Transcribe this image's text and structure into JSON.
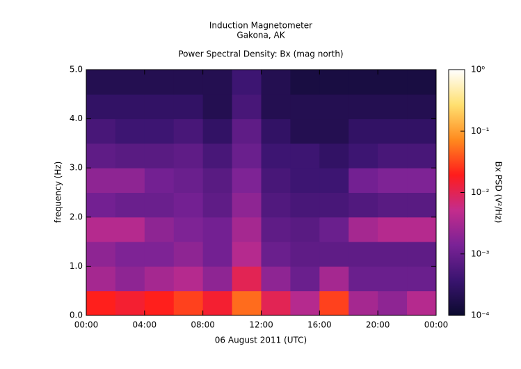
{
  "chart_data": {
    "type": "heatmap",
    "title": "Induction Magnetometer",
    "subtitle": "Gakona, AK",
    "plot_title": "Power Spectral Density: Bx (mag north)",
    "y_label": "frequency (Hz)",
    "x_label": "06 August 2011 (UTC)",
    "colorbar_label": "Bx PSD (V²/Hz)",
    "xlim": [
      0,
      24
    ],
    "xticks": [
      {
        "value": 0,
        "label": "00:00"
      },
      {
        "value": 4,
        "label": "04:00"
      },
      {
        "value": 8,
        "label": "08:00"
      },
      {
        "value": 12,
        "label": "12:00"
      },
      {
        "value": 16,
        "label": "16:00"
      },
      {
        "value": 20,
        "label": "20:00"
      },
      {
        "value": 24,
        "label": "00:00"
      }
    ],
    "ylim": [
      0,
      5
    ],
    "yticks": [
      {
        "value": 0,
        "label": "0.0"
      },
      {
        "value": 1,
        "label": "1.0"
      },
      {
        "value": 2,
        "label": "2.0"
      },
      {
        "value": 3,
        "label": "3.0"
      },
      {
        "value": 4,
        "label": "4.0"
      },
      {
        "value": 5,
        "label": "5.0"
      }
    ],
    "clim": [
      0.0001,
      1
    ],
    "color_log_scale": true,
    "cticks": [
      {
        "value": 0.0001,
        "label": "10⁻⁴"
      },
      {
        "value": 0.001,
        "label": "10⁻³"
      },
      {
        "value": 0.01,
        "label": "10⁻²"
      },
      {
        "value": 0.1,
        "label": "10⁻¹"
      },
      {
        "value": 1,
        "label": "10⁰"
      }
    ],
    "colormap": [
      "#0b0a2e",
      "#3a1470",
      "#7a2296",
      "#c42c8c",
      "#ff1c1c",
      "#ff8a1e",
      "#ffe070",
      "#ffffff"
    ],
    "x_bins": [
      0,
      2,
      4,
      6,
      8,
      10,
      12,
      14,
      16,
      18,
      20,
      22,
      24
    ],
    "y_bins": [
      0,
      0.5,
      1,
      1.5,
      2,
      2.5,
      3,
      3.5,
      4,
      4.5,
      5
    ],
    "z": [
      [
        0.02,
        0.015,
        0.02,
        0.03,
        0.015,
        0.05,
        0.01,
        0.004,
        0.03,
        0.003,
        0.002,
        0.004
      ],
      [
        0.003,
        0.002,
        0.003,
        0.004,
        0.002,
        0.01,
        0.002,
        0.001,
        0.003,
        0.001,
        0.001,
        0.001
      ],
      [
        0.002,
        0.0015,
        0.0015,
        0.002,
        0.0012,
        0.004,
        0.001,
        0.0008,
        0.0008,
        0.0008,
        0.0008,
        0.0008
      ],
      [
        0.004,
        0.004,
        0.002,
        0.0015,
        0.0012,
        0.003,
        0.0008,
        0.0007,
        0.001,
        0.003,
        0.004,
        0.004
      ],
      [
        0.0012,
        0.001,
        0.001,
        0.0012,
        0.0008,
        0.002,
        0.0006,
        0.0005,
        0.0005,
        0.0006,
        0.0007,
        0.0007
      ],
      [
        0.002,
        0.002,
        0.0012,
        0.001,
        0.0007,
        0.0015,
        0.0005,
        0.0004,
        0.0004,
        0.0012,
        0.0015,
        0.0015
      ],
      [
        0.0008,
        0.0007,
        0.0007,
        0.0008,
        0.0005,
        0.001,
        0.0004,
        0.0004,
        0.0003,
        0.0004,
        0.0005,
        0.0005
      ],
      [
        0.0005,
        0.0004,
        0.0004,
        0.0005,
        0.0003,
        0.0008,
        0.0003,
        0.0002,
        0.0002,
        0.0003,
        0.0003,
        0.0003
      ],
      [
        0.0003,
        0.0003,
        0.0003,
        0.0003,
        0.0002,
        0.0005,
        0.0002,
        0.0002,
        0.0002,
        0.0002,
        0.0002,
        0.0002
      ],
      [
        0.0002,
        0.0002,
        0.0002,
        0.0002,
        0.0002,
        0.0004,
        0.0002,
        0.00015,
        0.00015,
        0.00015,
        0.00015,
        0.00015
      ]
    ]
  }
}
